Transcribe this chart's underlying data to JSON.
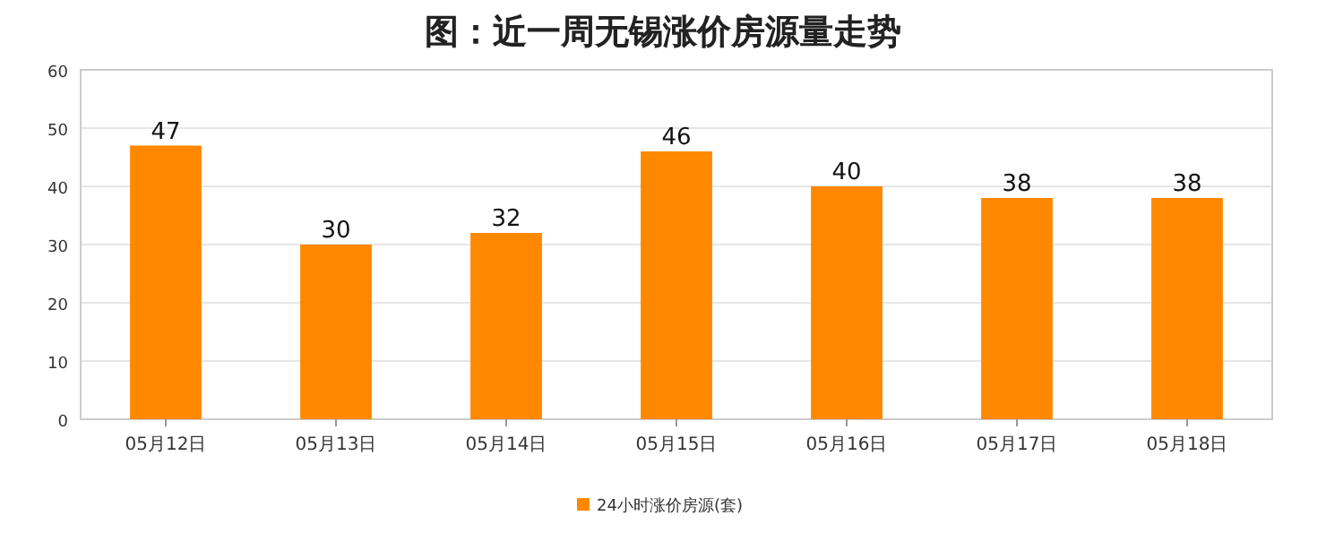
{
  "chart_data": {
    "type": "bar",
    "title": "图：近一周无锡涨价房源量走势",
    "categories": [
      "05月12日",
      "05月13日",
      "05月14日",
      "05月15日",
      "05月16日",
      "05月17日",
      "05月18日"
    ],
    "series": [
      {
        "name": "24小时涨价房源(套)",
        "color": "#ff8800",
        "values": [
          47,
          30,
          32,
          46,
          40,
          38,
          38
        ]
      }
    ],
    "ylim": [
      0,
      60
    ],
    "yticks": [
      0,
      10,
      20,
      30,
      40,
      50,
      60
    ],
    "grid": "y",
    "legend": "bottom",
    "data_labels": true
  }
}
